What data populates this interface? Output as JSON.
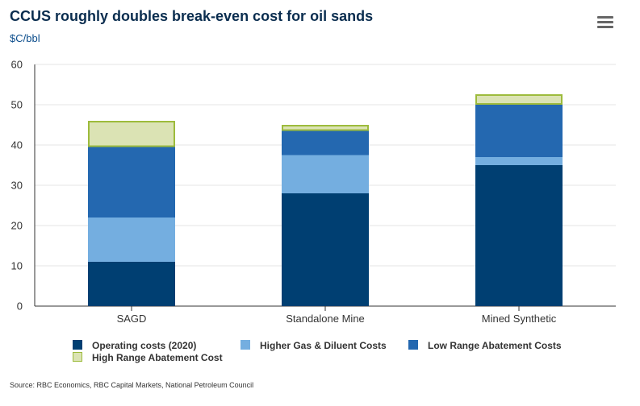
{
  "header": {
    "title": "CCUS roughly doubles break-even cost for oil sands",
    "subtitle": "$C/bbl",
    "menu_icon": "hamburger-menu-icon"
  },
  "footer": {
    "source": "Source: RBC Economics, RBC Capital Markets, National Petroleum Council"
  },
  "colors": {
    "operating": "#003f72",
    "gas": "#74aee0",
    "low": "#2468b0",
    "high_fill": "#dbe3b4",
    "high_border": "#9dbb3c",
    "gridline": "#e6e6e6",
    "axis": "#333333"
  },
  "chart_data": {
    "type": "bar",
    "stacked": true,
    "title": "CCUS roughly doubles break-even cost for oil sands",
    "ylabel": "$C/bbl",
    "categories": [
      "SAGD",
      "Standalone Mine",
      "Mined Synthetic"
    ],
    "ylim": [
      0,
      60
    ],
    "yticks": [
      0,
      10,
      20,
      30,
      40,
      50,
      60
    ],
    "grid": true,
    "legend_position": "bottom",
    "series": [
      {
        "name": "Operating costs (2020)",
        "values": [
          11,
          28,
          35
        ],
        "color": "#003f72"
      },
      {
        "name": "Higher Gas & Diluent Costs",
        "values": [
          11,
          9.5,
          2
        ],
        "color": "#74aee0"
      },
      {
        "name": "Low Range Abatement Costs",
        "values": [
          17.5,
          6,
          13
        ],
        "color": "#2468b0"
      },
      {
        "name": "High Range Abatement Cost",
        "values": [
          6.5,
          1.5,
          2.6
        ],
        "color": "#dbe3b4",
        "border": "#9dbb3c"
      }
    ]
  }
}
